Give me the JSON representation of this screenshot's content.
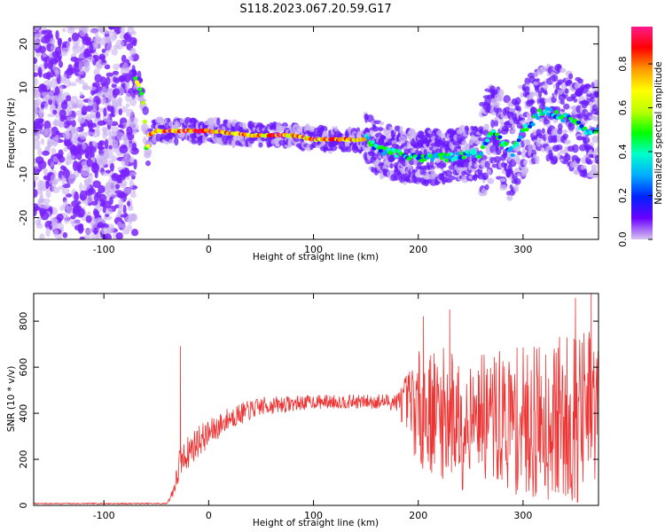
{
  "figure": {
    "title": "S118.2023.067.20.59.G17"
  },
  "chart_data": [
    {
      "id": "spectrogram",
      "type": "heatmap",
      "xlabel": "Height of straight line (km)",
      "ylabel": "Frequency (Hz)",
      "xlim": [
        -167,
        372
      ],
      "ylim": [
        -25,
        24
      ],
      "xticks": [
        -100,
        0,
        100,
        200,
        300
      ],
      "yticks": [
        -20,
        -10,
        0,
        10,
        20
      ],
      "grid": false,
      "colorbar": {
        "label": "Normalized spectral amplitude",
        "range": [
          0,
          0.97
        ],
        "ticks": [
          0.0,
          0.2,
          0.4,
          0.6,
          0.8
        ],
        "colors": [
          "#d8c4f0",
          "#6a00ff",
          "#0022ff",
          "#00aaff",
          "#00ffcc",
          "#00ff00",
          "#bbff00",
          "#ffff00",
          "#ff9900",
          "#ff0000",
          "#ff1a8c"
        ]
      },
      "ridge": {
        "x": [
          -70,
          -66,
          -63,
          -61,
          -59,
          -57,
          -50,
          -40,
          -30,
          -20,
          0,
          40,
          80,
          100,
          130,
          150,
          170,
          200,
          230,
          260,
          270,
          290,
          300,
          320,
          340,
          360
        ],
        "freq": [
          12,
          10,
          8,
          2,
          -6,
          -1,
          0,
          0,
          0,
          0,
          0,
          -1,
          -1,
          -2,
          -2,
          -2,
          -5,
          -6,
          -6,
          -5,
          0,
          -5,
          0,
          5,
          3,
          0
        ]
      }
    },
    {
      "id": "snr",
      "type": "line",
      "xlabel": "Height of straight line (km)",
      "ylabel": "SNR (10 * v/v)",
      "xlim": [
        -167,
        372
      ],
      "ylim": [
        0,
        920
      ],
      "xticks": [
        -100,
        0,
        100,
        200,
        300
      ],
      "yticks": [
        0,
        200,
        400,
        600,
        800
      ],
      "grid": false,
      "series": [
        {
          "color": "#ee3333",
          "envelope": {
            "x": [
              -167,
              -40,
              -35,
              -30,
              -28,
              -25,
              -20,
              -10,
              0,
              20,
              50,
              100,
              150,
              180,
              190,
              200,
              220,
              245,
              255,
              260,
              300,
              350,
              372
            ],
            "mean": [
              8,
              8,
              50,
              120,
              180,
              200,
              230,
              280,
              310,
              380,
              430,
              450,
              450,
              450,
              440,
              420,
              400,
              380,
              400,
              380,
              360,
              380,
              400
            ],
            "amplitude": [
              3,
              3,
              20,
              60,
              80,
              60,
              70,
              70,
              60,
              50,
              40,
              30,
              30,
              40,
              150,
              250,
              280,
              320,
              120,
              280,
              330,
              380,
              380
            ]
          },
          "spikes": [
            {
              "x": -27,
              "y": 690
            },
            {
              "x": 205,
              "y": 820
            },
            {
              "x": 230,
              "y": 850
            },
            {
              "x": 350,
              "y": 900
            },
            {
              "x": 365,
              "y": 920
            }
          ]
        }
      ]
    }
  ]
}
